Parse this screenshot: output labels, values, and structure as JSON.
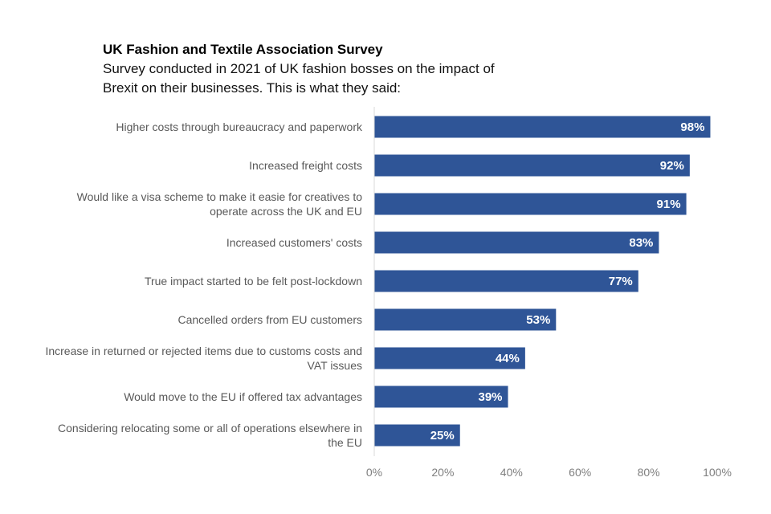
{
  "chart_data": {
    "type": "bar",
    "orientation": "horizontal",
    "title": "UK Fashion and Textile Association Survey",
    "subtitle": "Survey conducted in 2021 of UK fashion bosses on the impact of Brexit on their businesses. This is what they said:",
    "categories": [
      [
        "Higher costs through bureaucracy and paperwork"
      ],
      [
        "Increased freight costs"
      ],
      [
        "Would like a visa scheme to make it easie for creatives to",
        "operate across the UK and EU"
      ],
      [
        "Increased customers' costs"
      ],
      [
        "True impact started to be felt post-lockdown"
      ],
      [
        "Cancelled orders from EU customers"
      ],
      [
        "Increase in returned or rejected items due to customs costs and",
        "VAT issues"
      ],
      [
        "Would move to the EU if offered tax advantages"
      ],
      [
        "Considering relocating some or all of operations elsewhere in",
        "the EU"
      ]
    ],
    "values": [
      98,
      92,
      91,
      83,
      77,
      53,
      44,
      39,
      25
    ],
    "data_labels": [
      "98%",
      "92%",
      "91%",
      "83%",
      "77%",
      "53%",
      "44%",
      "39%",
      "25%"
    ],
    "xlim": [
      0,
      100
    ],
    "xticks": [
      0,
      20,
      40,
      60,
      80,
      100
    ],
    "xtick_labels": [
      "0%",
      "20%",
      "40%",
      "60%",
      "80%",
      "100%"
    ],
    "grid": false,
    "bar_color": "#2F5597"
  }
}
